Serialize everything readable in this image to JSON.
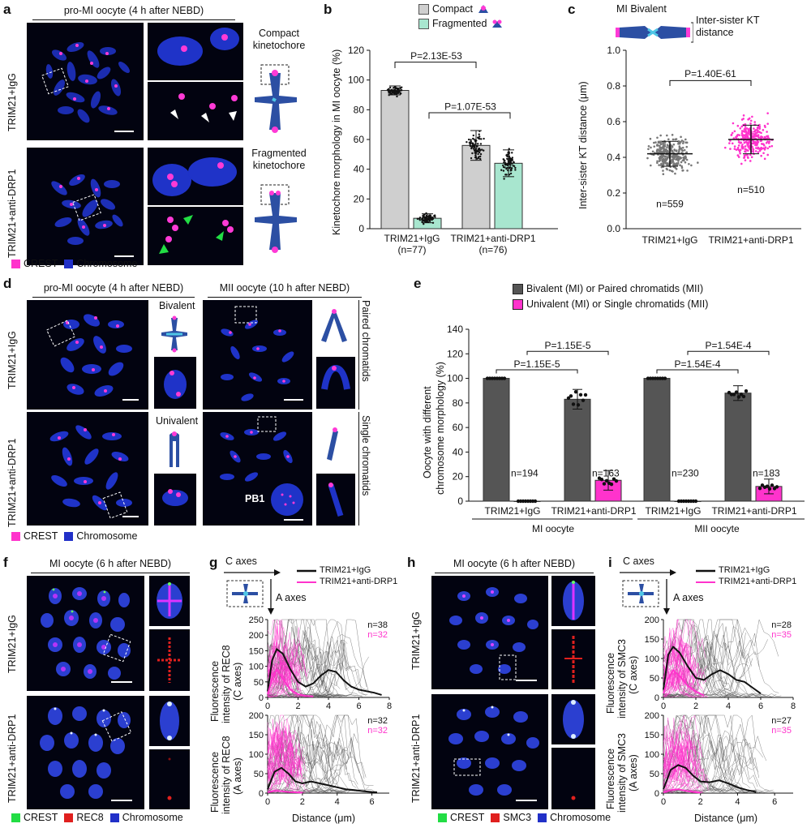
{
  "panels": {
    "a": "a",
    "b": "b",
    "c": "c",
    "d": "d",
    "e": "e",
    "f": "f",
    "g": "g",
    "h": "h",
    "i": "i"
  },
  "a": {
    "header": "pro-MI oocyte (4 h after NEBD)",
    "row1": "TRIM21+IgG",
    "row2": "TRIM21+anti-DRP1",
    "compact": "Compact kinetochore",
    "fragmented": "Fragmented kinetochore",
    "legend1": "CREST",
    "legend2": "Chromosome"
  },
  "b": {
    "legend1": "Compact",
    "legend2": "Fragmented",
    "ylabel": "Kinetochore morphology in MI oocyte (%)",
    "p1": "P=2.13E-53",
    "p2": "P=1.07E-53",
    "g1": "TRIM21+IgG",
    "g1n": "(n=77)",
    "g2": "TRIM21+anti-DRP1",
    "g2n": "(n=76)"
  },
  "c": {
    "title": "MI Bivalent",
    "dist": "Inter-sister KT distance",
    "ylabel": "Inter-sister KT distance (μm)",
    "p": "P=1.40E-61",
    "n1": "n=559",
    "n2": "n=510",
    "g1": "TRIM21+IgG",
    "g2": "TRIM21+anti-DRP1"
  },
  "d": {
    "header1": "pro-MI oocyte (4 h after NEBD)",
    "header2": "MII oocyte (10 h after NEBD)",
    "row1": "TRIM21+IgG",
    "row2": "TRIM21+anti-DRP1",
    "bivalent": "Bivalent",
    "univalent": "Univalent",
    "paired": "Paired chromatids",
    "single": "Single chromatids",
    "pb1": "PB1",
    "legend1": "CREST",
    "legend2": "Chromosome"
  },
  "e": {
    "legend1": "Bivalent (MI) or Paired chromatids (MII)",
    "legend2": "Univalent (MI) or Single chromatids (MII)",
    "ylabel1": "Oocyte with different",
    "ylabel2": "chromosome morphology (%)",
    "p1": "P=1.15E-5",
    "p2": "P=1.15E-5",
    "p3": "P=1.54E-4",
    "p4": "P=1.54E-4",
    "n1": "n=194",
    "n2": "n=163",
    "n3": "n=230",
    "n4": "n=183",
    "g1": "TRIM21+IgG",
    "g2": "TRIM21+anti-DRP1",
    "g3": "TRIM21+IgG",
    "g4": "TRIM21+anti-DRP1",
    "grp1": "MI oocyte",
    "grp2": "MII oocyte"
  },
  "f": {
    "header": "MI oocyte (6 h after NEBD)",
    "row1": "TRIM21+IgG",
    "row2": "TRIM21+anti-DRP1",
    "legend1": "CREST",
    "legend2": "REC8",
    "legend3": "Chromosome"
  },
  "g": {
    "caxes": "C axes",
    "aaxes": "A axes",
    "leg1": "TRIM21+IgG",
    "leg2": "TRIM21+anti-DRP1",
    "ylabel_top1": "Fluorescence",
    "ylabel_top2": "intensity of REC8",
    "ylabel_top3": "(C axes)",
    "ylabel_bot1": "Fluorescence",
    "ylabel_bot2": "intensity of REC8",
    "ylabel_bot3": "(A axes)",
    "n_top_a": "n=38",
    "n_top_b": "n=32",
    "n_bot_a": "n=32",
    "n_bot_b": "n=32",
    "xlabel": "Distance (μm)"
  },
  "h": {
    "header": "MI oocyte (6 h after NEBD)",
    "row1": "TRIM21+IgG",
    "row2": "TRIM21+anti-DRP1",
    "legend1": "CREST",
    "legend2": "SMC3",
    "legend3": "Chromosome"
  },
  "i": {
    "caxes": "C axes",
    "aaxes": "A axes",
    "leg1": "TRIM21+IgG",
    "leg2": "TRIM21+anti-DRP1",
    "ylabel_top1": "Fluorescence",
    "ylabel_top2": "intensity of SMC3",
    "ylabel_top3": "(C axes)",
    "ylabel_bot1": "Fluorescence",
    "ylabel_bot2": "intensity of SMC3",
    "ylabel_bot3": "(A axes)",
    "n_top_a": "n=28",
    "n_top_b": "n=35",
    "n_bot_a": "n=27",
    "n_bot_b": "n=35",
    "xlabel": "Distance (μm)"
  },
  "colors": {
    "gray": "#cfcfcf",
    "mint": "#a8e6cf",
    "magenta": "#ff33cc",
    "dark": "#555555",
    "blue": "#2130c8",
    "black": "#111111"
  },
  "chart_data": [
    {
      "panel": "b",
      "type": "bar",
      "categories": [
        "TRIM21+IgG (n=77)",
        "TRIM21+anti-DRP1 (n=76)"
      ],
      "series": [
        {
          "name": "Compact",
          "values": [
            93,
            56
          ]
        },
        {
          "name": "Fragmented",
          "values": [
            7,
            44
          ]
        }
      ],
      "errors": [
        [
          3,
          10
        ],
        [
          3,
          9
        ]
      ],
      "ylim": [
        0,
        120
      ],
      "yticks": [
        0,
        20,
        40,
        60,
        80,
        100,
        120
      ],
      "ylabel": "Kinetochore morphology in MI oocyte (%)",
      "annotations": [
        "P=2.13E-53",
        "P=1.07E-53"
      ]
    },
    {
      "panel": "c",
      "type": "scatter",
      "categories": [
        "TRIM21+IgG",
        "TRIM21+anti-DRP1"
      ],
      "means": [
        0.42,
        0.5
      ],
      "sd": [
        0.07,
        0.08
      ],
      "n": [
        559,
        510
      ],
      "ylim": [
        0.0,
        1.0
      ],
      "yticks": [
        0.0,
        0.2,
        0.4,
        0.6,
        0.8,
        1.0
      ],
      "ylabel": "Inter-sister KT distance (μm)",
      "annotations": [
        "P=1.40E-61"
      ]
    },
    {
      "panel": "e",
      "type": "bar",
      "categories": [
        "TRIM21+IgG",
        "TRIM21+anti-DRP1",
        "TRIM21+IgG",
        "TRIM21+anti-DRP1"
      ],
      "groups": [
        "MI oocyte",
        "MI oocyte",
        "MII oocyte",
        "MII oocyte"
      ],
      "series": [
        {
          "name": "Bivalent (MI) or Paired chromatids (MII)",
          "values": [
            100,
            83,
            100,
            88
          ]
        },
        {
          "name": "Univalent (MI) or Single chromatids (MII)",
          "values": [
            0,
            17,
            0,
            12
          ]
        }
      ],
      "errors": [
        [
          0,
          8,
          0,
          6
        ],
        [
          0,
          8,
          0,
          6
        ]
      ],
      "n": [
        194,
        163,
        230,
        183
      ],
      "ylim": [
        0,
        140
      ],
      "yticks": [
        0,
        20,
        40,
        60,
        80,
        100,
        120,
        140
      ],
      "annotations": [
        "P=1.15E-5",
        "P=1.15E-5",
        "P=1.54E-4",
        "P=1.54E-4"
      ]
    },
    {
      "panel": "g-top",
      "type": "line",
      "xlim": [
        0,
        8
      ],
      "xticks": [
        0,
        2,
        4,
        6,
        8
      ],
      "ylim": [
        0,
        250
      ],
      "yticks": [
        0,
        50,
        100,
        150,
        200,
        250
      ],
      "mean_series": [
        {
          "name": "TRIM21+IgG",
          "x": [
            0,
            0.3,
            0.6,
            1,
            1.5,
            2,
            2.5,
            3,
            3.5,
            4,
            4.5,
            5,
            5.5,
            6,
            6.5,
            7,
            7.5
          ],
          "y": [
            20,
            120,
            155,
            140,
            90,
            50,
            35,
            45,
            70,
            88,
            82,
            55,
            35,
            25,
            20,
            15,
            8
          ]
        },
        {
          "name": "TRIM21+anti-DRP1",
          "x": [
            0,
            0.3,
            0.6,
            1,
            1.5,
            2,
            2.5,
            3
          ],
          "y": [
            10,
            60,
            90,
            60,
            25,
            10,
            5,
            3
          ]
        }
      ]
    },
    {
      "panel": "g-bottom",
      "type": "line",
      "xlim": [
        0,
        7
      ],
      "xticks": [
        0,
        2,
        4,
        6
      ],
      "ylim": [
        0,
        200
      ],
      "yticks": [
        0,
        50,
        100,
        150,
        200
      ],
      "mean_series": [
        {
          "name": "TRIM21+IgG",
          "x": [
            0,
            0.4,
            0.8,
            1.2,
            1.6,
            2,
            2.5,
            3,
            3.5,
            4,
            4.5,
            5,
            5.5,
            6,
            6.3
          ],
          "y": [
            10,
            55,
            65,
            50,
            30,
            25,
            30,
            25,
            20,
            15,
            10,
            8,
            5,
            3,
            2
          ]
        },
        {
          "name": "TRIM21+anti-DRP1",
          "x": [
            0,
            0.4,
            0.8,
            1.2,
            1.6,
            2
          ],
          "y": [
            2,
            6,
            5,
            3,
            2,
            1
          ]
        }
      ]
    },
    {
      "panel": "i-top",
      "type": "line",
      "xlim": [
        0,
        8
      ],
      "xticks": [
        0,
        2,
        4,
        6,
        8
      ],
      "ylim": [
        0,
        200
      ],
      "yticks": [
        0,
        50,
        100,
        150,
        200
      ],
      "mean_series": [
        {
          "name": "TRIM21+IgG",
          "x": [
            0,
            0.3,
            0.6,
            1,
            1.5,
            2,
            2.5,
            3,
            3.5,
            4,
            4.5,
            5,
            5.5,
            6
          ],
          "y": [
            20,
            110,
            130,
            115,
            80,
            50,
            45,
            60,
            70,
            60,
            45,
            40,
            25,
            10
          ]
        },
        {
          "name": "TRIM21+anti-DRP1",
          "x": [
            0,
            0.3,
            0.6,
            1,
            1.5,
            2,
            2.5
          ],
          "y": [
            10,
            50,
            70,
            55,
            30,
            15,
            5
          ]
        }
      ]
    },
    {
      "panel": "i-bottom",
      "type": "line",
      "xlim": [
        0,
        7
      ],
      "xticks": [
        0,
        2,
        4,
        6
      ],
      "ylim": [
        0,
        200
      ],
      "yticks": [
        0,
        50,
        100,
        150,
        200
      ],
      "mean_series": [
        {
          "name": "TRIM21+IgG",
          "x": [
            0,
            0.4,
            0.8,
            1.2,
            1.6,
            2,
            2.5,
            3,
            3.5,
            4,
            4.5,
            5
          ],
          "y": [
            10,
            60,
            72,
            65,
            45,
            30,
            28,
            33,
            25,
            15,
            8,
            3
          ]
        },
        {
          "name": "TRIM21+anti-DRP1",
          "x": [
            0,
            0.4,
            0.8,
            1.2,
            1.6,
            2
          ],
          "y": [
            2,
            8,
            10,
            6,
            3,
            1
          ]
        }
      ]
    }
  ]
}
